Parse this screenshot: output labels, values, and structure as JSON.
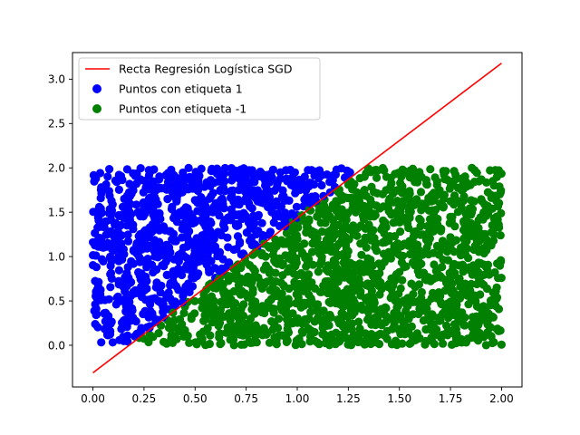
{
  "chart_data": {
    "type": "scatter",
    "title": "",
    "xlabel": "",
    "ylabel": "",
    "xlim": [
      -0.1,
      2.1
    ],
    "ylim": [
      -0.47,
      3.3
    ],
    "x_ticks": [
      "0.00",
      "0.25",
      "0.50",
      "0.75",
      "1.00",
      "1.25",
      "1.50",
      "1.75",
      "2.00"
    ],
    "y_ticks": [
      "0.0",
      "0.5",
      "1.0",
      "1.5",
      "2.0",
      "2.5",
      "3.0"
    ],
    "grid": false,
    "legend_position": "top-left",
    "regression_line": {
      "name": "Recta Regresión Logística SGD",
      "color": "#ff0000",
      "x": [
        0.0,
        2.0
      ],
      "y": [
        -0.31,
        3.18
      ]
    },
    "series": [
      {
        "name": "Puntos con etiqueta 1",
        "color": "#0000ff",
        "label": 1,
        "x_range": [
          0.0,
          2.0
        ],
        "y_range": [
          0.0,
          2.0
        ],
        "rule": "above regression line"
      },
      {
        "name": "Puntos con etiqueta -1",
        "color": "#008000",
        "label": -1,
        "x_range": [
          0.0,
          2.0
        ],
        "y_range": [
          0.0,
          2.0
        ],
        "rule": "below regression line"
      }
    ]
  }
}
